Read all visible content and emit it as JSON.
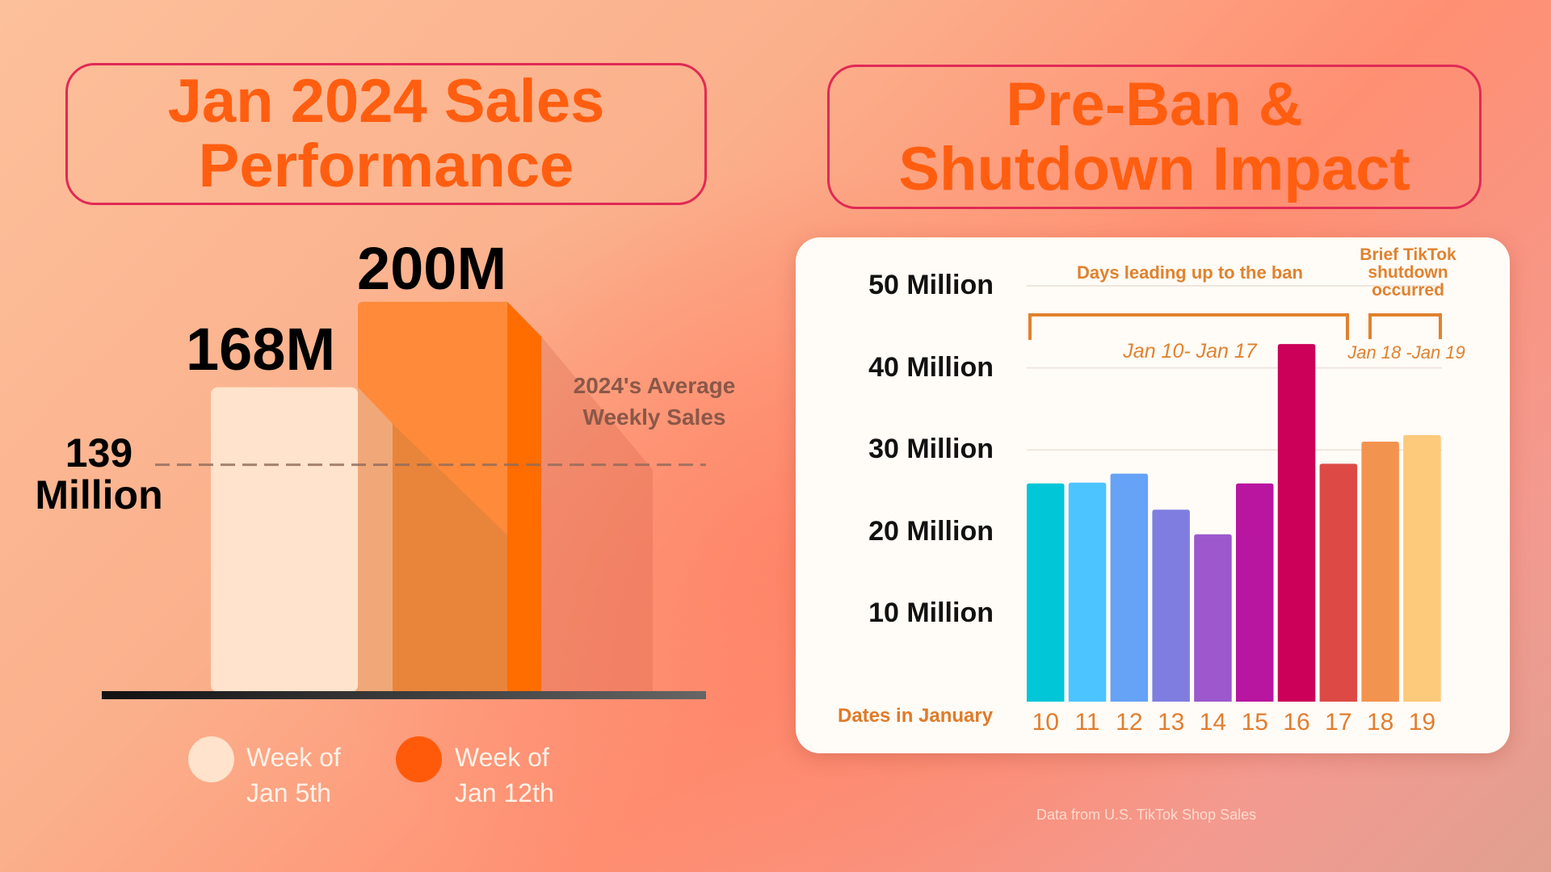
{
  "left": {
    "title_lines": [
      "Jan 2024 Sales",
      "Performance"
    ],
    "chart_data": {
      "type": "bar",
      "categories": [
        "Week of Jan 5th",
        "Week of Jan 12th"
      ],
      "values": [
        168,
        200
      ],
      "value_labels": [
        "168M",
        "200M"
      ],
      "unit": "Million",
      "reference_line": {
        "value": 139,
        "label_lines": [
          "139",
          "Million"
        ],
        "caption_lines": [
          "2024's Average",
          "Weekly Sales"
        ]
      },
      "colors": [
        "#ffe3cc",
        "#ff8a3a"
      ]
    },
    "legend": [
      {
        "lines": [
          "Week of",
          "Jan 5th"
        ],
        "color": "#ffe3cc"
      },
      {
        "lines": [
          "Week of",
          "Jan 12th"
        ],
        "color": "#ff5a0a"
      }
    ]
  },
  "right": {
    "title_lines": [
      "Pre-Ban &",
      "Shutdown Impact"
    ],
    "chart_data": {
      "type": "bar",
      "xlabel": "Dates in January",
      "categories": [
        "10",
        "11",
        "12",
        "13",
        "14",
        "15",
        "16",
        "17",
        "18",
        "19"
      ],
      "values": [
        26.3,
        26.4,
        27.5,
        23.1,
        20.1,
        26.3,
        43.3,
        28.7,
        31.4,
        32.2
      ],
      "unit": "Million",
      "yticks": [
        "10 Million",
        "20 Million",
        "30 Million",
        "40 Million",
        "50 Million"
      ],
      "ytick_values": [
        10,
        20,
        30,
        40,
        50
      ],
      "ylim": [
        0,
        50
      ],
      "grid": true,
      "colors": [
        "#00c6d8",
        "#4cc4ff",
        "#66a2f6",
        "#7f7ee0",
        "#9c58cc",
        "#b815a0",
        "#cc0058",
        "#dd4a46",
        "#f39350",
        "#fdc97a"
      ],
      "annotations": [
        {
          "title": "Days leading up to the ban",
          "range_label": "Jan 10- Jan 17",
          "from": "10",
          "to": "17"
        },
        {
          "title_lines": [
            "Brief TikTok",
            "shutdown",
            "occurred"
          ],
          "range_label": "Jan 18 -Jan 19",
          "from": "18",
          "to": "19"
        }
      ],
      "accent_color": "#e0822e"
    }
  },
  "footer": "Data from U.S. TikTok Shop Sales"
}
